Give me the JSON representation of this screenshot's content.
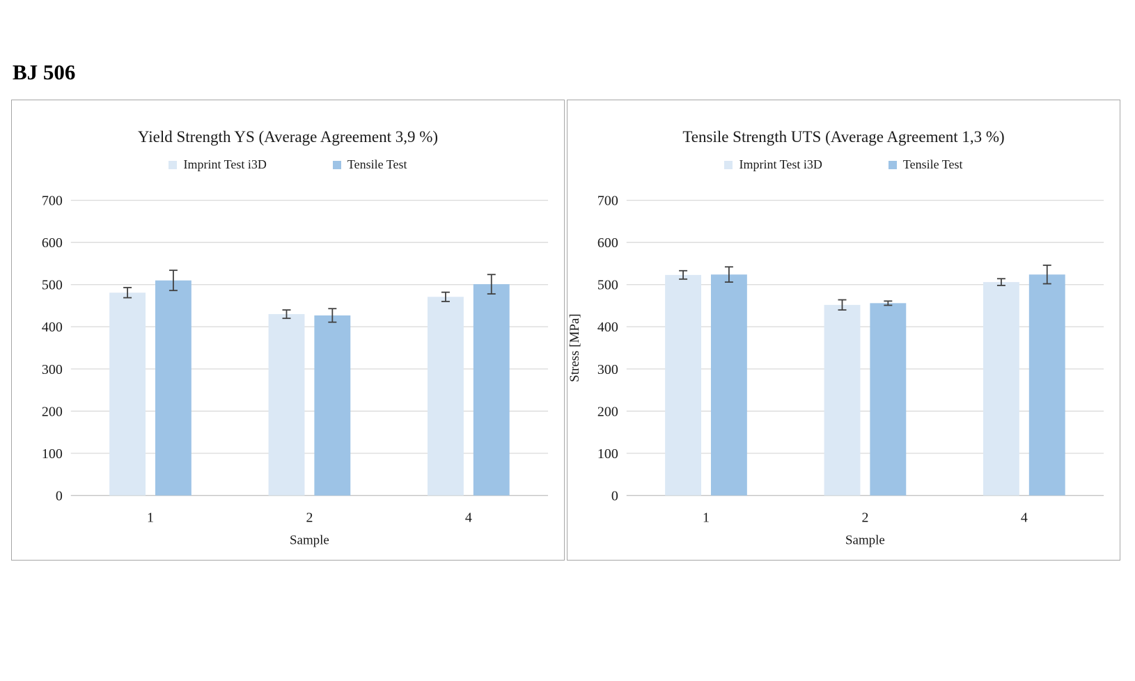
{
  "page_title": "BJ 506",
  "colors": {
    "grid": "#d9d9d9",
    "axis_line": "#c3c3c3",
    "error_bar": "#404040",
    "panel_border": "#a6a6a6",
    "series_light": "#dbe8f5",
    "series_dark": "#9dc3e6"
  },
  "chart_data": [
    {
      "type": "bar",
      "title": "Yield Strength YS (Average Agreement 3,9 %)",
      "categories": [
        "1",
        "2",
        "4"
      ],
      "series": [
        {
          "name": "Imprint Test i3D",
          "color": "#dbe8f5",
          "values": [
            481,
            430,
            471
          ],
          "errors": [
            12,
            10,
            11
          ]
        },
        {
          "name": "Tensile Test",
          "color": "#9dc3e6",
          "values": [
            510,
            427,
            501
          ],
          "errors": [
            24,
            16,
            23
          ]
        }
      ],
      "xlabel": "Sample",
      "ylabel": "",
      "ylim": [
        0,
        700
      ],
      "ytick_step": 100,
      "grid": true,
      "legend_position": "top"
    },
    {
      "type": "bar",
      "title": "Tensile Strength UTS (Average Agreement 1,3 %)",
      "categories": [
        "1",
        "2",
        "4"
      ],
      "series": [
        {
          "name": "Imprint Test i3D",
          "color": "#dbe8f5",
          "values": [
            523,
            452,
            506
          ],
          "errors": [
            10,
            12,
            8
          ]
        },
        {
          "name": "Tensile Test",
          "color": "#9dc3e6",
          "values": [
            524,
            456,
            524
          ],
          "errors": [
            18,
            5,
            22
          ]
        }
      ],
      "xlabel": "Sample",
      "ylabel": "Stress [MPa]",
      "ylim": [
        0,
        700
      ],
      "ytick_step": 100,
      "grid": true,
      "legend_position": "top"
    }
  ]
}
